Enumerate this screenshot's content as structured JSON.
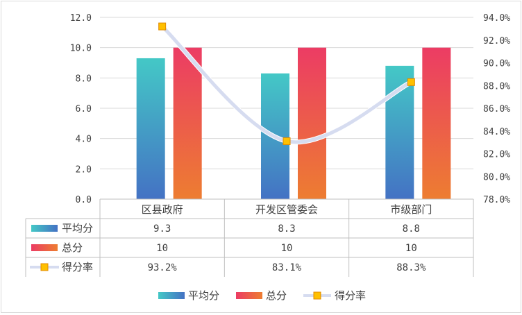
{
  "chart_data": {
    "type": "bar",
    "categories": [
      "区县政府",
      "开发区管委会",
      "市级部门"
    ],
    "series": [
      {
        "name": "平均分",
        "kind": "bar",
        "axis": "left",
        "values": [
          9.3,
          8.3,
          8.8
        ],
        "display": [
          "9.3",
          "8.3",
          "8.8"
        ],
        "colors": [
          "#44c8c6",
          "#4472c4"
        ]
      },
      {
        "name": "总分",
        "kind": "bar",
        "axis": "left",
        "values": [
          10,
          10,
          10
        ],
        "display": [
          "10",
          "10",
          "10"
        ],
        "colors": [
          "#ec3c64",
          "#ed7d31"
        ]
      },
      {
        "name": "得分率",
        "kind": "line",
        "axis": "right",
        "values": [
          93.2,
          83.1,
          88.3
        ],
        "display": [
          "93.2%",
          "83.1%",
          "88.3%"
        ],
        "colors": [
          "#d6dcf0",
          "#ffc000"
        ]
      }
    ],
    "y_left": {
      "min": 0,
      "max": 12,
      "step": 2,
      "ticks": [
        "0.0",
        "2.0",
        "4.0",
        "6.0",
        "8.0",
        "10.0",
        "12.0"
      ]
    },
    "y_right": {
      "min": 78,
      "max": 94,
      "step": 2,
      "ticks": [
        "78.0%",
        "80.0%",
        "82.0%",
        "84.0%",
        "86.0%",
        "88.0%",
        "90.0%",
        "92.0%",
        "94.0%"
      ]
    },
    "grid": true,
    "data_table": true,
    "legend": "bottom"
  }
}
